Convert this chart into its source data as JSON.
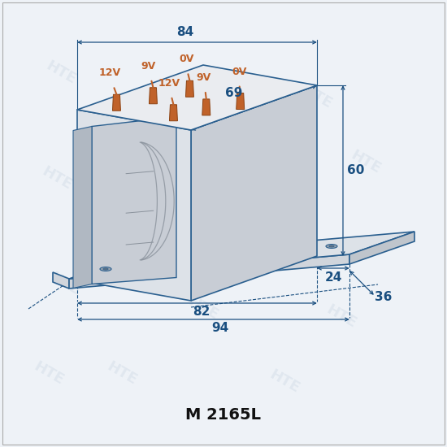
{
  "title": "M 2165L",
  "bg_color": "#eef2f7",
  "line_color": "#2a5f8f",
  "dim_color": "#1a4f80",
  "terminal_color": "#c0622a",
  "dim_fontsize": 11,
  "terminal_fontsize": 9,
  "title_fontsize": 14,
  "left_terminals": [
    "12V",
    "9V",
    "0V"
  ],
  "right_terminals": [
    "12V",
    "9V",
    "0V"
  ],
  "body_front": "#dde2e8",
  "body_top": "#eaecf0",
  "body_right": "#c8cdd5",
  "body_left_inner": "#b8bec8",
  "winding_color": "#8a929c",
  "base_color": "#d0d5dc",
  "base_top_color": "#dde2e8"
}
